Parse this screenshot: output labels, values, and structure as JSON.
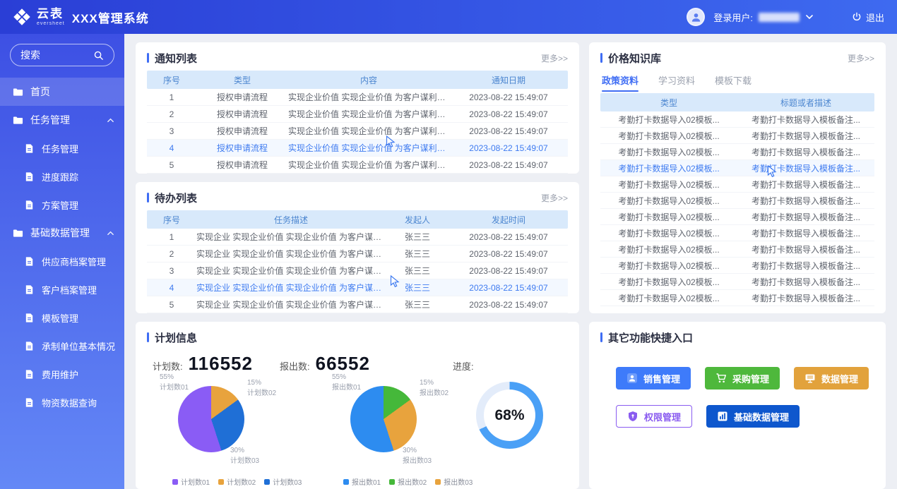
{
  "colors": {
    "accent": "#3f6df4",
    "header_gradient_start": "#2a3ed6",
    "header_gradient_end": "#3e6af0",
    "table_header_bg": "#d8e9fb",
    "highlight_text": "#3f7bf0"
  },
  "header": {
    "logo_cn": "云表",
    "logo_en": "eversheet",
    "app_title": "XXX管理系统",
    "user_label": "登录用户:",
    "logout_label": "退出"
  },
  "sidebar": {
    "search_label": "搜索",
    "items": [
      {
        "label": "首页"
      },
      {
        "label": "任务管理"
      },
      {
        "label": "任务管理"
      },
      {
        "label": "进度跟踪"
      },
      {
        "label": "方案管理"
      },
      {
        "label": "基础数据管理"
      },
      {
        "label": "供应商档案管理"
      },
      {
        "label": "客户档案管理"
      },
      {
        "label": "模板管理"
      },
      {
        "label": "承制单位基本情况"
      },
      {
        "label": "费用维护"
      },
      {
        "label": "物资数据查询"
      }
    ]
  },
  "notice": {
    "title": "通知列表",
    "more": "更多>>",
    "headers": [
      "序号",
      "类型",
      "内容",
      "通知日期"
    ],
    "rows": [
      {
        "no": "1",
        "type": "授权申请流程",
        "content": "实现企业价值 实现企业价值 为客户谋利益...",
        "date": "2023-08-22 15:49:07",
        "highlight": false
      },
      {
        "no": "2",
        "type": "授权申请流程",
        "content": "实现企业价值 实现企业价值 为客户谋利益...",
        "date": "2023-08-22 15:49:07",
        "highlight": false
      },
      {
        "no": "3",
        "type": "授权申请流程",
        "content": "实现企业价值 实现企业价值 为客户谋利益...",
        "date": "2023-08-22 15:49:07",
        "highlight": false
      },
      {
        "no": "4",
        "type": "授权申请流程",
        "content": "实现企业价值 实现企业价值 为客户谋利益...",
        "date": "2023-08-22 15:49:07",
        "highlight": true
      },
      {
        "no": "5",
        "type": "授权申请流程",
        "content": "实现企业价值 实现企业价值 为客户谋利益...",
        "date": "2023-08-22 15:49:07",
        "highlight": false
      }
    ]
  },
  "todo": {
    "title": "待办列表",
    "more": "更多>>",
    "headers": [
      "序号",
      "任务描述",
      "发起人",
      "发起时间"
    ],
    "rows": [
      {
        "no": "1",
        "desc": "实现企业 实现企业价值 实现企业价值 为客户谋利益...",
        "owner": "张三三",
        "time": "2023-08-22 15:49:07",
        "highlight": false
      },
      {
        "no": "2",
        "desc": "实现企业 实现企业价值 实现企业价值 为客户谋利益...",
        "owner": "张三三",
        "time": "2023-08-22 15:49:07",
        "highlight": false
      },
      {
        "no": "3",
        "desc": "实现企业 实现企业价值 实现企业价值 为客户谋利益...",
        "owner": "张三三",
        "time": "2023-08-22 15:49:07",
        "highlight": false
      },
      {
        "no": "4",
        "desc": "实现企业 实现企业价值 实现企业价值 为客户谋利益...",
        "owner": "张三三",
        "time": "2023-08-22 15:49:07",
        "highlight": true
      },
      {
        "no": "5",
        "desc": "实现企业 实现企业价值 实现企业价值 为客户谋利益...",
        "owner": "张三三",
        "time": "2023-08-22 15:49:07",
        "highlight": false
      }
    ]
  },
  "knowledge": {
    "title": "价格知识库",
    "more": "更多>>",
    "tabs": [
      "政策资料",
      "学习资料",
      "模板下载"
    ],
    "headers": [
      "类型",
      "标题或者描述"
    ],
    "rows": [
      {
        "type": "考勤打卡数据导入02模板...",
        "desc": "考勤打卡数据导入模板备注...",
        "highlight": false
      },
      {
        "type": "考勤打卡数据导入02模板...",
        "desc": "考勤打卡数据导入模板备注...",
        "highlight": false
      },
      {
        "type": "考勤打卡数据导入02模板...",
        "desc": "考勤打卡数据导入模板备注...",
        "highlight": false
      },
      {
        "type": "考勤打卡数据导入02模板...",
        "desc": "考勤打卡数据导入模板备注...",
        "highlight": true
      },
      {
        "type": "考勤打卡数据导入02模板...",
        "desc": "考勤打卡数据导入模板备注...",
        "highlight": false
      },
      {
        "type": "考勤打卡数据导入02模板...",
        "desc": "考勤打卡数据导入模板备注...",
        "highlight": false
      },
      {
        "type": "考勤打卡数据导入02模板...",
        "desc": "考勤打卡数据导入模板备注...",
        "highlight": false
      },
      {
        "type": "考勤打卡数据导入02模板...",
        "desc": "考勤打卡数据导入模板备注...",
        "highlight": false
      },
      {
        "type": "考勤打卡数据导入02模板...",
        "desc": "考勤打卡数据导入模板备注...",
        "highlight": false
      },
      {
        "type": "考勤打卡数据导入02模板...",
        "desc": "考勤打卡数据导入模板备注...",
        "highlight": false
      },
      {
        "type": "考勤打卡数据导入02模板...",
        "desc": "考勤打卡数据导入模板备注...",
        "highlight": false
      },
      {
        "type": "考勤打卡数据导入02模板...",
        "desc": "考勤打卡数据导入模板备注...",
        "highlight": false
      }
    ]
  },
  "plan": {
    "title": "计划信息",
    "stat1_label": "计划数:",
    "stat2_label": "报出数:",
    "progress_label": "进度:",
    "legend1": [
      {
        "label": "计划数01",
        "color": "#8a5cf5"
      },
      {
        "label": "计划数02",
        "color": "#e8a33d"
      },
      {
        "label": "计划数03",
        "color": "#1f6fd6"
      }
    ],
    "legend2": [
      {
        "label": "报出数01",
        "color": "#2d8cf0"
      },
      {
        "label": "报出数02",
        "color": "#45b83a"
      },
      {
        "label": "报出数03",
        "color": "#e8a33d"
      }
    ]
  },
  "chart_data": [
    {
      "type": "pie",
      "name": "计划数",
      "total": "116552",
      "segments": [
        {
          "label": "计划数02",
          "pct": 15,
          "color": "#e8a33d"
        },
        {
          "label": "计划数03",
          "pct": 30,
          "color": "#1f6fd6"
        },
        {
          "label": "计划数01",
          "pct": 55,
          "color": "#8a5cf5"
        }
      ],
      "callouts": [
        {
          "pct": "55%",
          "label": "计划数01"
        },
        {
          "pct": "15%",
          "label": "计划数02"
        },
        {
          "pct": "30%",
          "label": "计划数03"
        }
      ]
    },
    {
      "type": "pie",
      "name": "报出数",
      "total": "66552",
      "segments": [
        {
          "label": "报出数02",
          "pct": 15,
          "color": "#45b83a"
        },
        {
          "label": "报出数03",
          "pct": 30,
          "color": "#e8a33d"
        },
        {
          "label": "报出数01",
          "pct": 55,
          "color": "#2d8cf0"
        }
      ],
      "callouts": [
        {
          "pct": "55%",
          "label": "报出数01"
        },
        {
          "pct": "15%",
          "label": "报出数02"
        },
        {
          "pct": "30%",
          "label": "报出数03"
        }
      ]
    },
    {
      "type": "donut",
      "name": "进度",
      "pct": 68,
      "text": "68%"
    }
  ],
  "shortcuts": {
    "title": "其它功能快捷入口",
    "buttons": {
      "sales": "销售管理",
      "purchase": "采购管理",
      "data": "数据管理",
      "permission": "权限管理",
      "base": "基础数据管理"
    }
  }
}
